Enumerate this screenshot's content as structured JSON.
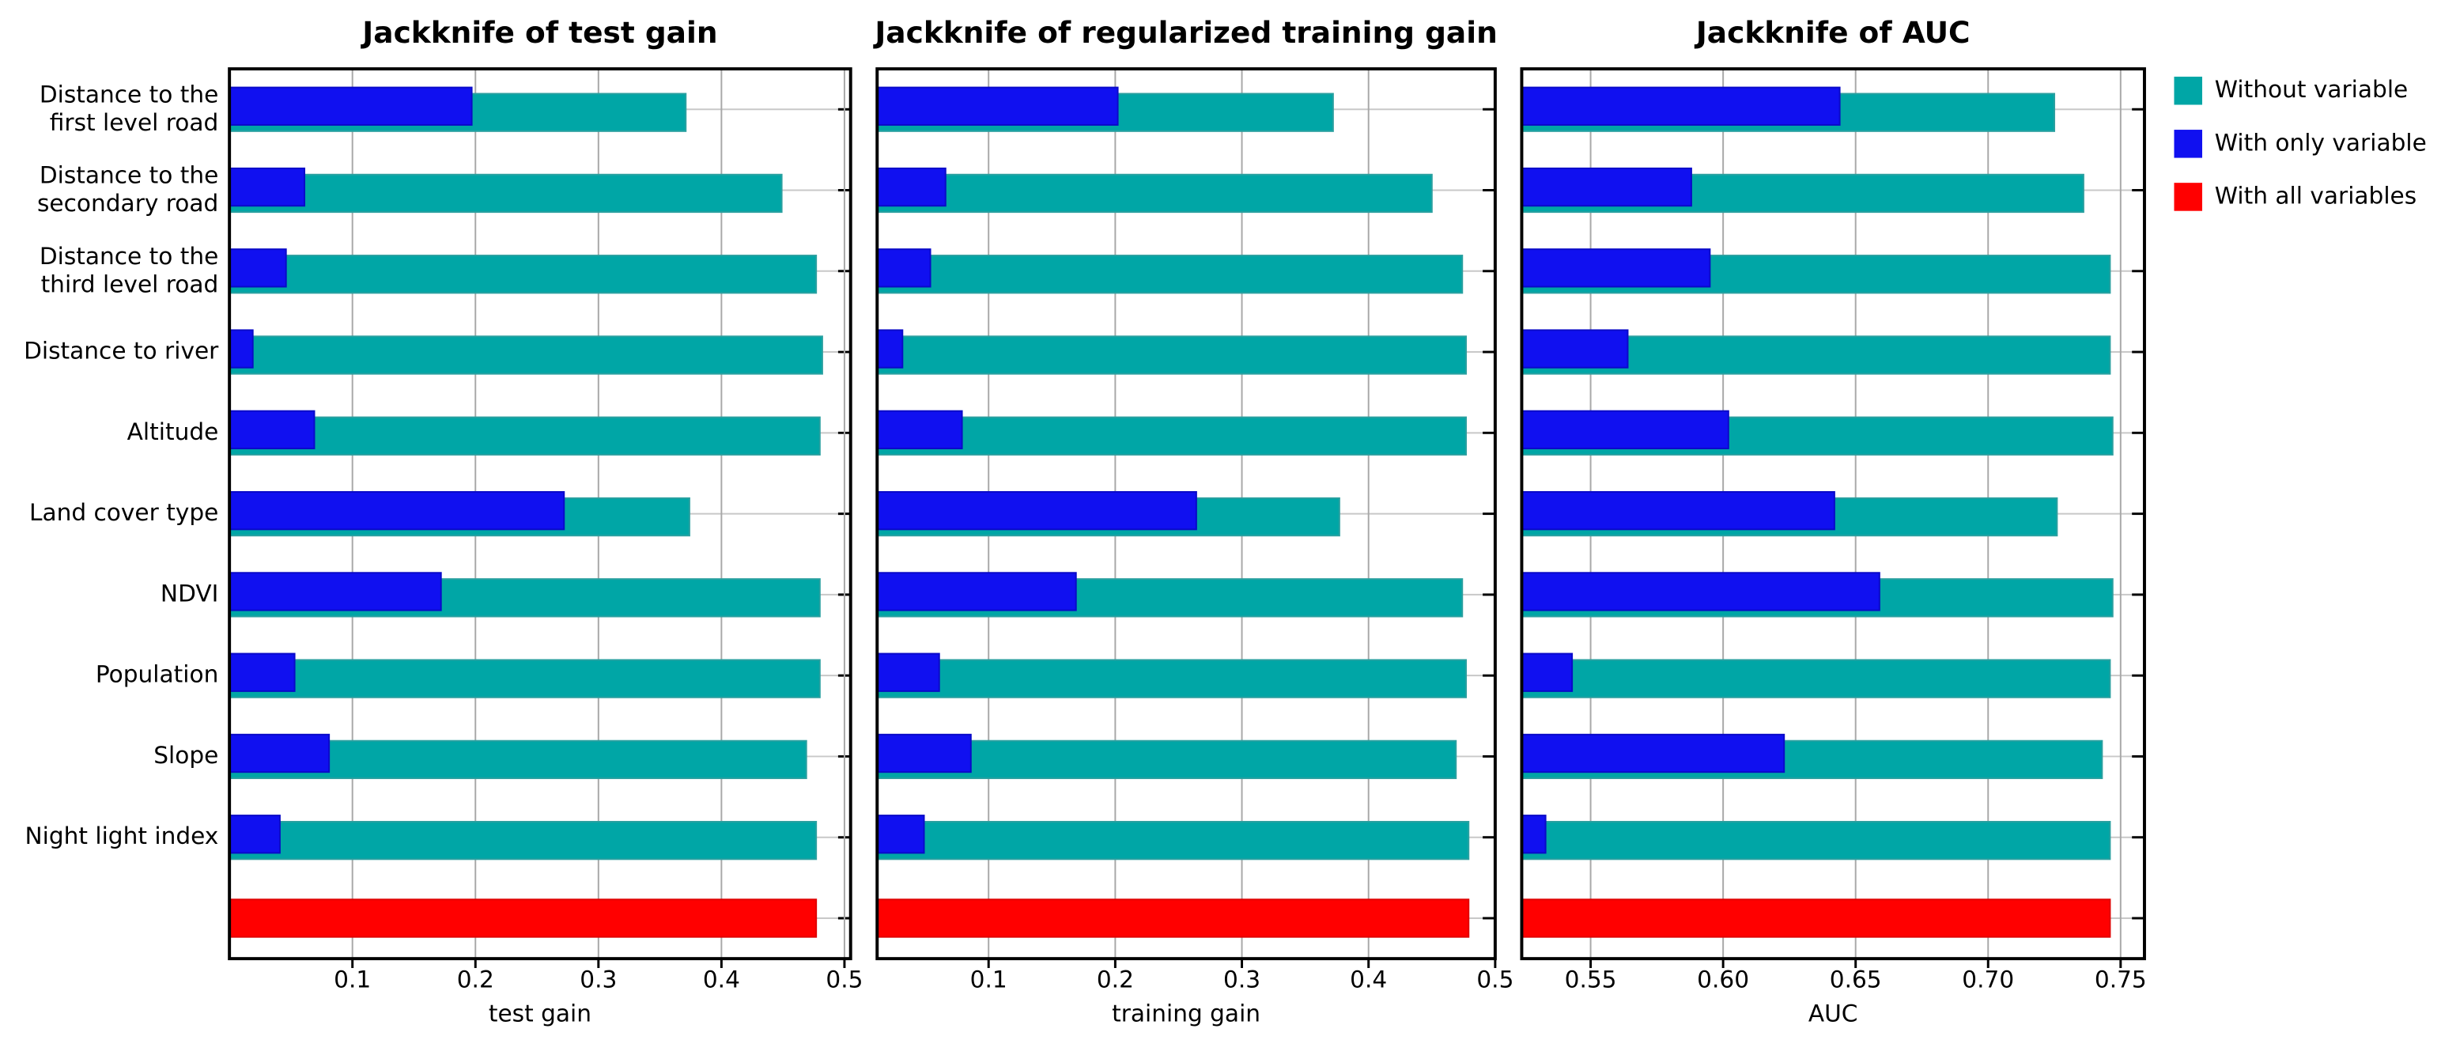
{
  "chart_data": [
    {
      "type": "bar",
      "orientation": "horizontal",
      "title": "Jackknife of test gain",
      "x_label": "test gain",
      "categories": [
        "Distance to the\nfirst level road",
        "Distance to the\nsecondary road",
        "Distance to the\nthird level road",
        "Distance to river",
        "Altitude",
        "Land cover type",
        "NDVI",
        "Population",
        "Slope",
        "Night light index",
        null
      ],
      "series": [
        {
          "name": "Without variable",
          "color": "#00a6a6",
          "values": [
            0.371,
            0.449,
            0.477,
            0.482,
            0.48,
            0.374,
            0.48,
            0.48,
            0.469,
            0.477,
            null
          ]
        },
        {
          "name": "With only variable",
          "color": "#1010f0",
          "values": [
            0.197,
            0.061,
            0.046,
            0.019,
            0.069,
            0.272,
            0.172,
            0.053,
            0.081,
            0.041,
            null
          ]
        },
        {
          "name": "With all variables",
          "color": "#ff0000",
          "values": [
            null,
            null,
            null,
            null,
            null,
            null,
            null,
            null,
            null,
            null,
            0.477
          ]
        }
      ],
      "xlim": [
        0,
        0.505
      ],
      "xticks": [
        0.1,
        0.2,
        0.3,
        0.4,
        0.5
      ],
      "grid": true
    },
    {
      "type": "bar",
      "orientation": "horizontal",
      "title": "Jackknife of regularized training gain",
      "x_label": "training  gain",
      "series": [
        {
          "values": [
            0.372,
            0.45,
            0.474,
            0.477,
            0.477,
            0.377,
            0.474,
            0.477,
            0.469,
            0.479,
            null
          ]
        },
        {
          "values": [
            0.202,
            0.066,
            0.054,
            0.032,
            0.079,
            0.264,
            0.169,
            0.061,
            0.086,
            0.049,
            null
          ]
        },
        {
          "values": [
            null,
            null,
            null,
            null,
            null,
            null,
            null,
            null,
            null,
            null,
            0.479
          ]
        }
      ],
      "xlim": [
        0.012,
        0.5
      ],
      "xticks": [
        0.1,
        0.2,
        0.3,
        0.4,
        0.5
      ],
      "grid": true
    },
    {
      "type": "bar",
      "orientation": "horizontal",
      "title": "Jackknife of AUC",
      "x_label": "AUC",
      "series": [
        {
          "values": [
            0.725,
            0.736,
            0.746,
            0.746,
            0.747,
            0.726,
            0.747,
            0.746,
            0.743,
            0.746,
            null
          ]
        },
        {
          "values": [
            0.644,
            0.588,
            0.595,
            0.564,
            0.602,
            0.642,
            0.659,
            0.543,
            0.623,
            0.533,
            null
          ]
        },
        {
          "values": [
            null,
            null,
            null,
            null,
            null,
            null,
            null,
            null,
            null,
            null,
            0.746
          ]
        }
      ],
      "xlim": [
        0.524,
        0.759
      ],
      "xticks": [
        0.55,
        {
          "value": 0.6,
          "label": "0.60"
        },
        0.65,
        {
          "value": 0.7,
          "label": "0.70"
        },
        0.75
      ],
      "grid": true
    }
  ]
}
